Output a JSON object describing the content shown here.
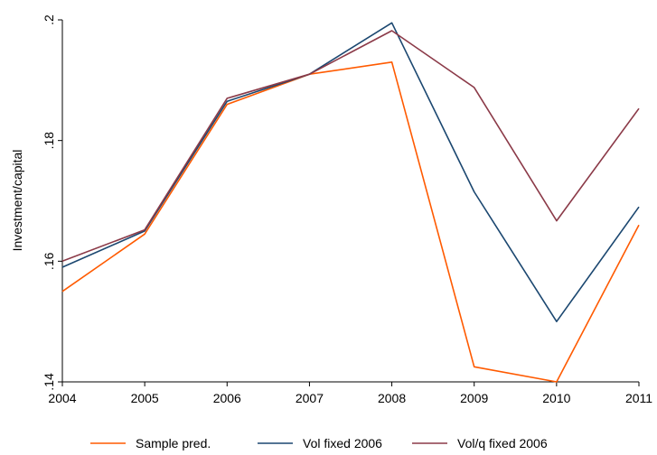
{
  "chart_data": {
    "type": "line",
    "title": "",
    "xlabel": "",
    "ylabel": "Investment/capital",
    "x": [
      2004,
      2005,
      2006,
      2007,
      2008,
      2009,
      2010,
      2011
    ],
    "x_tick_labels": [
      "2004",
      "2005",
      "2006",
      "2007",
      "2008",
      "2009",
      "2010",
      "2011"
    ],
    "y_ticks": [
      0.14,
      0.16,
      0.18,
      0.2
    ],
    "y_tick_labels": [
      ".14",
      ".16",
      ".18",
      ".2"
    ],
    "xlim": [
      2004,
      2011
    ],
    "ylim": [
      0.14,
      0.2
    ],
    "grid": false,
    "legend_position": "bottom",
    "series": [
      {
        "name": "Sample pred.",
        "color": "#ff5a00",
        "values": [
          0.155,
          0.1645,
          0.186,
          0.191,
          0.193,
          0.1425,
          0.14,
          0.166
        ]
      },
      {
        "name": "Vol fixed 2006",
        "color": "#1b4770",
        "values": [
          0.159,
          0.165,
          0.1865,
          0.191,
          0.1995,
          0.1715,
          0.15,
          0.169
        ]
      },
      {
        "name": "Vol/q fixed 2006",
        "color": "#8b3a48",
        "values": [
          0.16,
          0.1652,
          0.187,
          0.191,
          0.1982,
          0.1888,
          0.1667,
          0.1853
        ]
      }
    ]
  }
}
